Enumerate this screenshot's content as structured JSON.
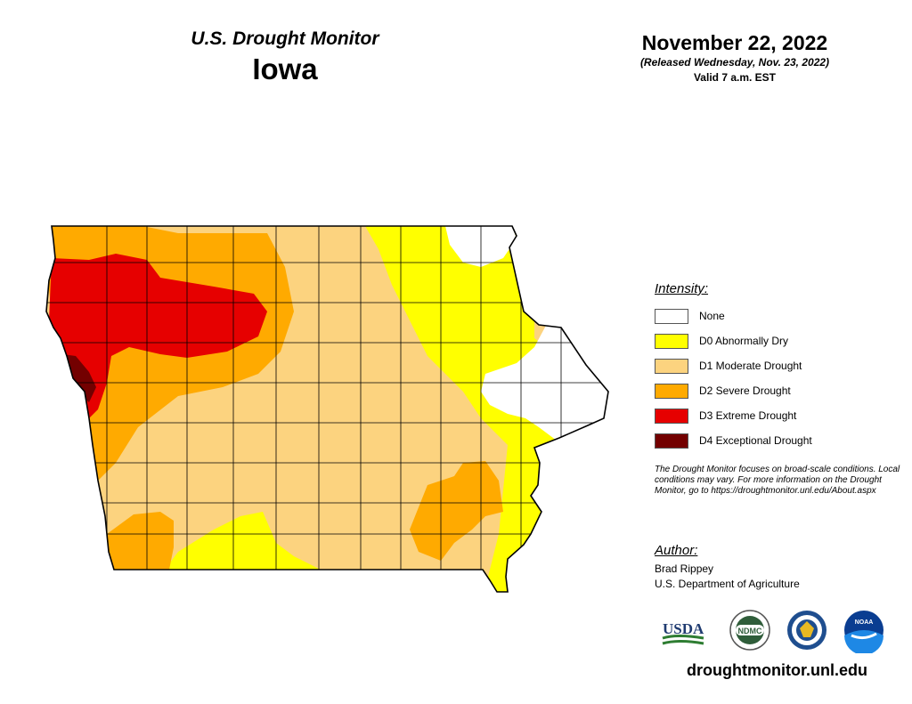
{
  "header": {
    "monitor_title": "U.S. Drought Monitor",
    "state": "Iowa",
    "date": "November 22, 2022",
    "released": "(Released Wednesday, Nov. 23, 2022)",
    "valid": "Valid 7 a.m. EST"
  },
  "legend": {
    "title": "Intensity:",
    "items": [
      {
        "label": "None",
        "color": "#ffffff"
      },
      {
        "label": "D0 Abnormally Dry",
        "color": "#ffff00"
      },
      {
        "label": "D1 Moderate Drought",
        "color": "#fcd37f"
      },
      {
        "label": "D2 Severe Drought",
        "color": "#ffaa00"
      },
      {
        "label": "D3 Extreme Drought",
        "color": "#e60000"
      },
      {
        "label": "D4 Exceptional Drought",
        "color": "#730000"
      }
    ]
  },
  "disclaimer": "The Drought Monitor focuses on broad-scale conditions. Local conditions may vary. For more information on the Drought Monitor, go to https://droughtmonitor.unl.edu/About.aspx",
  "author": {
    "title": "Author:",
    "name": "Brad Rippey",
    "org": "U.S. Department of Agriculture"
  },
  "logos": {
    "usda": "USDA",
    "ndmc": "NDMC",
    "noaa": "NOAA"
  },
  "site_url": "droughtmonitor.unl.edu",
  "colors": {
    "county_border": "#000000",
    "state_border": "#000000"
  }
}
